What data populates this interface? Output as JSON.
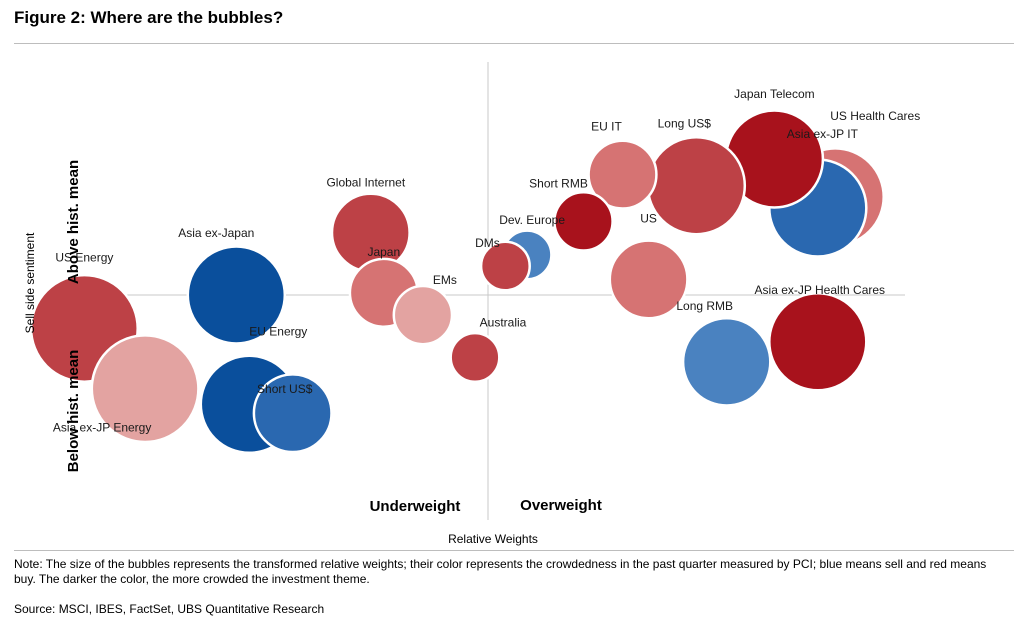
{
  "figure_title": "Figure 2: Where are the bubbles?",
  "note": "Note: The size of the bubbles represents the transformed relative weights; their color represents the crowdedness in the past quarter measured by PCI; blue means sell and red means buy. The darker the color, the more crowded the investment theme.",
  "source": "Source:  MSCI, IBES, FactSet, UBS Quantitative Research",
  "colors": {
    "dark_red": "#a8121c",
    "red": "#bd4146",
    "light_red": "#d67373",
    "pale_red": "#e3a3a1",
    "dark_blue": "#0a4f9c",
    "blue": "#2a68b0",
    "light_blue": "#4a82c0"
  },
  "chart_data": {
    "type": "bubble",
    "xlabel": "Relative Weights",
    "ylabel": "Sell side sentiment",
    "quadrant_labels": {
      "left": "Underweight",
      "right": "Overweight",
      "top": "Above hist. mean",
      "bottom": "Below hist. mean"
    },
    "grid": false,
    "series": [
      {
        "label": "US Health Cares",
        "x": 8.0,
        "y": 4.4,
        "size": 10,
        "color": "light_red"
      },
      {
        "label": "Asia ex-JP IT",
        "x": 7.6,
        "y": 3.9,
        "size": 10,
        "color": "blue"
      },
      {
        "label": "Japan Telecom",
        "x": 6.6,
        "y": 6.1,
        "size": 10,
        "color": "dark_red"
      },
      {
        "label": "Long US$",
        "x": 4.8,
        "y": 4.9,
        "size": 10,
        "color": "red"
      },
      {
        "label": "EU IT",
        "x": 3.1,
        "y": 5.4,
        "size": 7,
        "color": "light_red"
      },
      {
        "label": "Short RMB",
        "x": 2.2,
        "y": 3.3,
        "size": 6,
        "color": "dark_red"
      },
      {
        "label": "Dev. Europe",
        "x": 0.9,
        "y": 1.8,
        "size": 5,
        "color": "light_blue"
      },
      {
        "label": "DMs",
        "x": 0.4,
        "y": 1.3,
        "size": 5,
        "color": "red"
      },
      {
        "label": "US",
        "x": 3.7,
        "y": 0.7,
        "size": 8,
        "color": "light_red"
      },
      {
        "label": "Asia ex-JP Health Cares",
        "x": 7.6,
        "y": -2.1,
        "size": 10,
        "color": "dark_red"
      },
      {
        "label": "Long RMB",
        "x": 5.5,
        "y": -3.0,
        "size": 9,
        "color": "light_blue"
      },
      {
        "label": "Global Internet",
        "x": -2.7,
        "y": 2.8,
        "size": 8,
        "color": "red"
      },
      {
        "label": "Japan",
        "x": -2.4,
        "y": 0.1,
        "size": 7,
        "color": "light_red"
      },
      {
        "label": "EMs",
        "x": -1.5,
        "y": -0.9,
        "size": 6,
        "color": "pale_red"
      },
      {
        "label": "Australia",
        "x": -0.3,
        "y": -2.8,
        "size": 5,
        "color": "red"
      },
      {
        "label": "Asia ex-Japan",
        "x": -5.8,
        "y": 0.0,
        "size": 10,
        "color": "dark_blue"
      },
      {
        "label": "US Energy",
        "x": -9.3,
        "y": -1.5,
        "size": 11,
        "color": "red"
      },
      {
        "label": "EU Energy",
        "x": -5.5,
        "y": -4.9,
        "size": 10,
        "color": "dark_blue"
      },
      {
        "label": "Short US$",
        "x": -4.5,
        "y": -5.3,
        "size": 8,
        "color": "blue"
      },
      {
        "label": "Asia ex-JP Energy",
        "x": -7.9,
        "y": -4.2,
        "size": 11,
        "color": "pale_red"
      }
    ],
    "point_labels": [
      "US Health Cares",
      "Asia ex-JP IT",
      "Japan Telecom",
      "Long US$",
      "EU IT",
      "Short RMB",
      "Dev. Europe",
      "DMs",
      "US",
      "Asia ex-JP Health Cares",
      "Long RMB",
      "Global Internet",
      "Japan",
      "EMs",
      "Australia",
      "Asia ex-Japan",
      "US Energy",
      "EU Energy",
      "Short US$",
      "Asia ex-JP Energy"
    ]
  }
}
